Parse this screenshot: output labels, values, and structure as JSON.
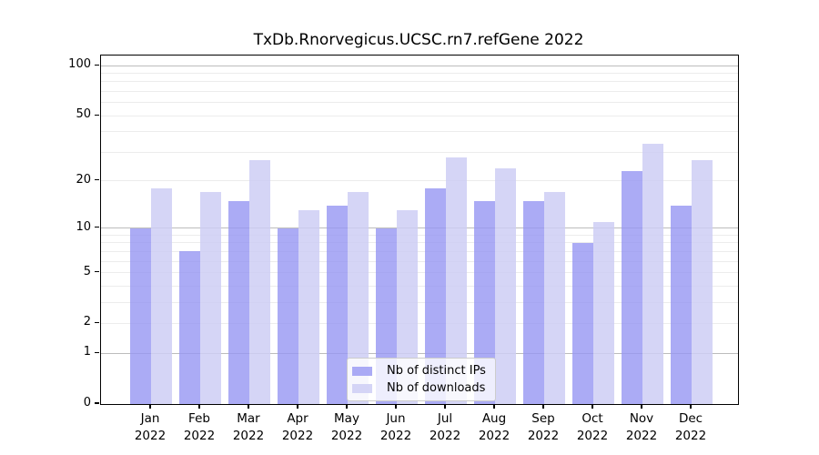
{
  "title": "TxDb.Rnorvegicus.UCSC.rn7.refGene 2022",
  "chart_data": {
    "type": "bar",
    "title": "TxDb.Rnorvegicus.UCSC.rn7.refGene 2022",
    "categories": [
      "Jan",
      "Feb",
      "Mar",
      "Apr",
      "May",
      "Jun",
      "Jul",
      "Aug",
      "Sep",
      "Oct",
      "Nov",
      "Dec"
    ],
    "year_label": "2022",
    "series": [
      {
        "name": "Nb of distinct IPs",
        "color": "#9696F2",
        "opacity": 0.8,
        "values": [
          10,
          7,
          15,
          10,
          14,
          10,
          18,
          15,
          15,
          8,
          23,
          14
        ]
      },
      {
        "name": "Nb of downloads",
        "color": "#CECEF5",
        "opacity": 0.85,
        "values": [
          18,
          17,
          27,
          13,
          17,
          13,
          28,
          24,
          17,
          11,
          34,
          27
        ]
      }
    ],
    "y_scale": "log1p",
    "ylim": [
      0,
      115
    ],
    "y_ticks": [
      {
        "label": "100",
        "value": 100
      },
      {
        "label": "50",
        "value": 50
      },
      {
        "label": "20",
        "value": 20
      },
      {
        "label": "10",
        "value": 10
      },
      {
        "label": "5",
        "value": 5
      },
      {
        "label": "2",
        "value": 2
      },
      {
        "label": "1",
        "value": 1
      },
      {
        "label": "0",
        "value": 0
      }
    ],
    "grid": {
      "major_values": [
        1,
        10,
        100
      ],
      "minor_values": [
        2,
        3,
        4,
        5,
        6,
        7,
        8,
        9,
        20,
        30,
        40,
        50,
        60,
        70,
        80,
        90
      ],
      "major_color": "#bcbcbc",
      "minor_color": "#ececec"
    },
    "legend_position": "lower center",
    "axis_color": "#000000"
  }
}
